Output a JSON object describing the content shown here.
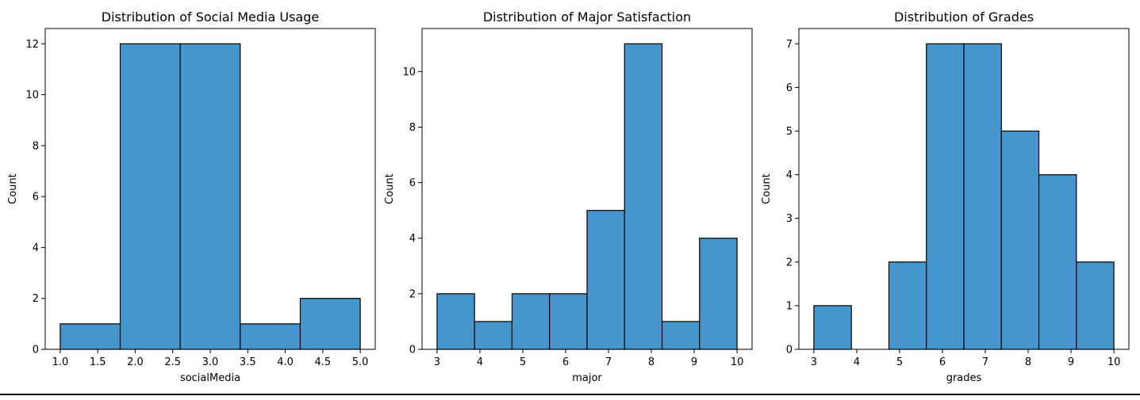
{
  "chart_data": [
    {
      "type": "bar",
      "title": "Distribution of Social Media Usage",
      "xlabel": "socialMedia",
      "ylabel": "Count",
      "bins": [
        {
          "x0": 1.0,
          "x1": 1.8,
          "count": 1
        },
        {
          "x0": 1.8,
          "x1": 2.6,
          "count": 12
        },
        {
          "x0": 2.6,
          "x1": 3.4,
          "count": 12
        },
        {
          "x0": 3.4,
          "x1": 4.2,
          "count": 1
        },
        {
          "x0": 4.2,
          "x1": 5.0,
          "count": 2
        }
      ],
      "xlim": [
        0.8,
        5.2
      ],
      "ylim": [
        0,
        12.6
      ],
      "xticks": [
        1.0,
        1.5,
        2.0,
        2.5,
        3.0,
        3.5,
        4.0,
        4.5,
        5.0
      ],
      "xtick_labels": [
        "1.0",
        "1.5",
        "2.0",
        "2.5",
        "3.0",
        "3.5",
        "4.0",
        "4.5",
        "5.0"
      ],
      "yticks": [
        0,
        2,
        4,
        6,
        8,
        10,
        12
      ],
      "ytick_labels": [
        "0",
        "2",
        "4",
        "6",
        "8",
        "10",
        "12"
      ],
      "grid": false,
      "color": "#4596cd"
    },
    {
      "type": "bar",
      "title": "Distribution of Major Satisfaction",
      "xlabel": "major",
      "ylabel": "Count",
      "bins": [
        {
          "x0": 3.0,
          "x1": 3.875,
          "count": 2
        },
        {
          "x0": 3.875,
          "x1": 4.75,
          "count": 1
        },
        {
          "x0": 4.75,
          "x1": 5.625,
          "count": 2
        },
        {
          "x0": 5.625,
          "x1": 6.5,
          "count": 2
        },
        {
          "x0": 6.5,
          "x1": 7.375,
          "count": 5
        },
        {
          "x0": 7.375,
          "x1": 8.25,
          "count": 11
        },
        {
          "x0": 8.25,
          "x1": 9.125,
          "count": 1
        },
        {
          "x0": 9.125,
          "x1": 10.0,
          "count": 4
        }
      ],
      "xlim": [
        2.65,
        10.35
      ],
      "ylim": [
        0,
        11.55
      ],
      "xticks": [
        3,
        4,
        5,
        6,
        7,
        8,
        9,
        10
      ],
      "xtick_labels": [
        "3",
        "4",
        "5",
        "6",
        "7",
        "8",
        "9",
        "10"
      ],
      "yticks": [
        0,
        2,
        4,
        6,
        8,
        10
      ],
      "ytick_labels": [
        "0",
        "2",
        "4",
        "6",
        "8",
        "10"
      ],
      "grid": false,
      "color": "#4596cd"
    },
    {
      "type": "bar",
      "title": "Distribution of Grades",
      "xlabel": "grades",
      "ylabel": "Count",
      "bins": [
        {
          "x0": 3.0,
          "x1": 3.875,
          "count": 1
        },
        {
          "x0": 3.875,
          "x1": 4.75,
          "count": 0
        },
        {
          "x0": 4.75,
          "x1": 5.625,
          "count": 2
        },
        {
          "x0": 5.625,
          "x1": 6.5,
          "count": 7
        },
        {
          "x0": 6.5,
          "x1": 7.375,
          "count": 7
        },
        {
          "x0": 7.375,
          "x1": 8.25,
          "count": 5
        },
        {
          "x0": 8.25,
          "x1": 9.125,
          "count": 4
        },
        {
          "x0": 9.125,
          "x1": 10.0,
          "count": 2
        }
      ],
      "xlim": [
        2.65,
        10.35
      ],
      "ylim": [
        0,
        7.35
      ],
      "xticks": [
        3,
        4,
        5,
        6,
        7,
        8,
        9,
        10
      ],
      "xtick_labels": [
        "3",
        "4",
        "5",
        "6",
        "7",
        "8",
        "9",
        "10"
      ],
      "yticks": [
        0,
        1,
        2,
        3,
        4,
        5,
        6,
        7
      ],
      "ytick_labels": [
        "0",
        "1",
        "2",
        "3",
        "4",
        "5",
        "6",
        "7"
      ],
      "grid": false,
      "color": "#4596cd"
    }
  ]
}
